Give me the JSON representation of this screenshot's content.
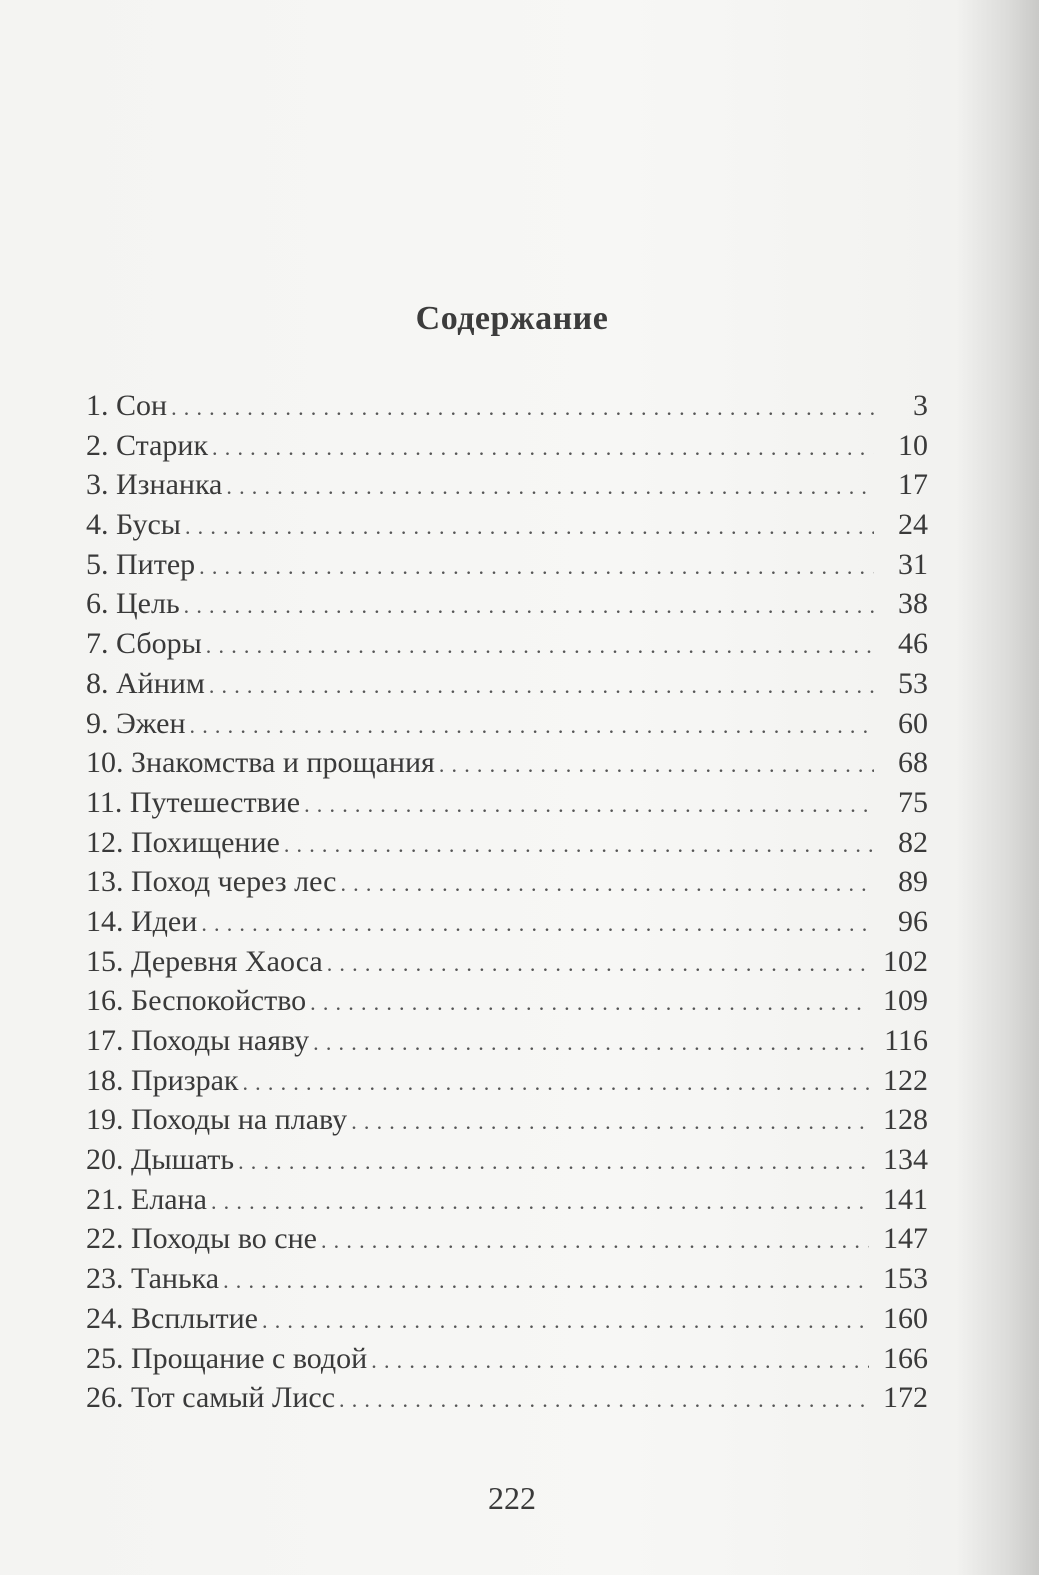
{
  "title": "Содержание",
  "entries": [
    {
      "label": "1. Сон",
      "page": "3"
    },
    {
      "label": "2. Старик",
      "page": "10"
    },
    {
      "label": "3.  Изнанка",
      "page": "17"
    },
    {
      "label": "4. Бусы",
      "page": "24"
    },
    {
      "label": "5. Питер",
      "page": "31"
    },
    {
      "label": "6. Цель",
      "page": "38"
    },
    {
      "label": "7. Сборы",
      "page": "46"
    },
    {
      "label": "8. Айним",
      "page": "53"
    },
    {
      "label": "9. Эжен",
      "page": "60"
    },
    {
      "label": "10. Знакомства и прощания",
      "page": "68"
    },
    {
      "label": "11. Путешествие",
      "page": "75"
    },
    {
      "label": "12. Похищение",
      "page": "82"
    },
    {
      "label": "13. Поход через лес",
      "page": "89"
    },
    {
      "label": "14. Идеи",
      "page": "96"
    },
    {
      "label": "15. Деревня Хаоса",
      "page": "102"
    },
    {
      "label": "16. Беспокойство",
      "page": "109"
    },
    {
      "label": "17. Походы наяву",
      "page": "116"
    },
    {
      "label": "18. Призрак",
      "page": "122"
    },
    {
      "label": "19. Походы на плаву",
      "page": "128"
    },
    {
      "label": "20. Дышать",
      "page": "134"
    },
    {
      "label": "21. Елана",
      "page": "141"
    },
    {
      "label": "22. Походы во сне",
      "page": "147"
    },
    {
      "label": "23. Танька",
      "page": "153"
    },
    {
      "label": "24. Всплытие",
      "page": "160"
    },
    {
      "label": "25. Прощание с водой",
      "page": "166"
    },
    {
      "label": "26. Тот самый Лисс",
      "page": "172"
    }
  ],
  "page_number": "222"
}
